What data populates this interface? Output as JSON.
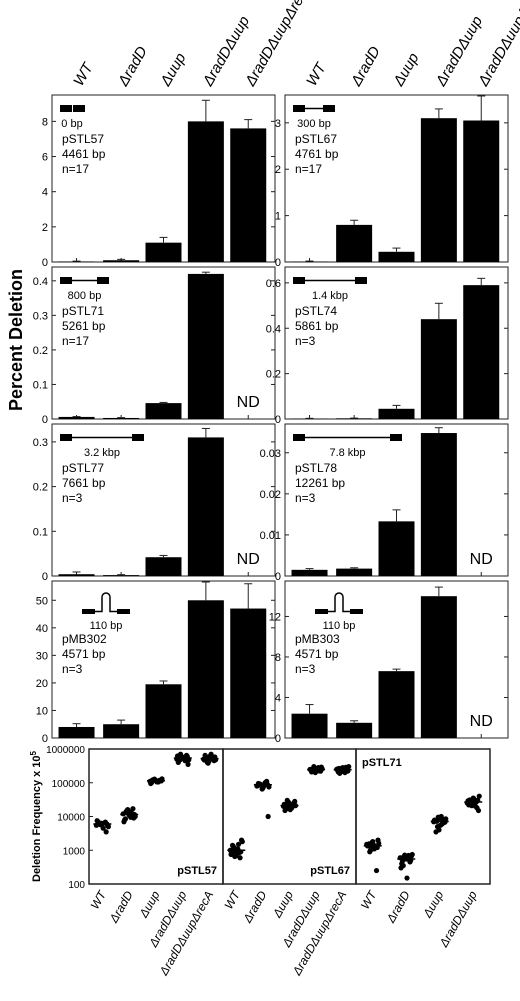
{
  "figure": {
    "y_axis_label_top": "Percent Deletion",
    "top_categories": [
      "WT",
      "ΔradD",
      "Δuup",
      "ΔradDΔuup",
      "ΔradDΔuupΔrecA"
    ]
  },
  "chart_data": [
    {
      "type": "bar",
      "plasmid": "pSTL57",
      "info": [
        "pSTL57",
        "4461 bp",
        "n=17"
      ],
      "insert": "0 bp",
      "schematic": "gap",
      "ylim": [
        0,
        9.5
      ],
      "ticks": [
        0,
        2,
        4,
        6,
        8
      ],
      "values": [
        0.03,
        0.1,
        1.1,
        8.0,
        7.6
      ],
      "errors": [
        0.02,
        0.05,
        0.3,
        1.2,
        0.5
      ],
      "nd": false
    },
    {
      "type": "bar",
      "plasmid": "pSTL67",
      "info": [
        "pSTL67",
        "4761 bp",
        "n=17"
      ],
      "insert": "300 bp",
      "schematic": "line",
      "ylim": [
        0,
        3.6
      ],
      "ticks": [
        0,
        1,
        2,
        3
      ],
      "values": [
        0.01,
        0.8,
        0.22,
        3.1,
        3.05
      ],
      "errors": [
        0.01,
        0.1,
        0.08,
        0.2,
        0.7
      ],
      "nd": false
    },
    {
      "type": "bar",
      "plasmid": "pSTL71",
      "info": [
        "pSTL71",
        "5261 bp",
        "n=17"
      ],
      "insert": "800 bp",
      "schematic": "line",
      "ylim": [
        0,
        0.44
      ],
      "ticks": [
        0,
        0.1,
        0.2,
        0.3,
        0.4
      ],
      "values": [
        0.006,
        0.003,
        0.046,
        0.42,
        null
      ],
      "errors": [
        0.001,
        0.001,
        0.002,
        0.005,
        null
      ],
      "nd": true
    },
    {
      "type": "bar",
      "plasmid": "pSTL74",
      "info": [
        "pSTL74",
        "5861 bp",
        "n=3"
      ],
      "insert": "1.4 kbp",
      "schematic": "line",
      "ylim": [
        0,
        0.67
      ],
      "ticks": [
        0,
        0.2,
        0.4,
        0.6
      ],
      "values": [
        0.002,
        0.003,
        0.045,
        0.44,
        0.59
      ],
      "errors": [
        0.001,
        0.001,
        0.015,
        0.07,
        0.03
      ],
      "nd": false
    },
    {
      "type": "bar",
      "plasmid": "pSTL77",
      "info": [
        "pSTL77",
        "7661 bp",
        "n=3"
      ],
      "insert": "3.2 kbp",
      "schematic": "line",
      "ylim": [
        0,
        0.34
      ],
      "ticks": [
        0,
        0.1,
        0.2,
        0.3
      ],
      "values": [
        0.004,
        0.002,
        0.042,
        0.31,
        null
      ],
      "errors": [
        0.005,
        0.001,
        0.004,
        0.02,
        null
      ],
      "nd": true
    },
    {
      "type": "bar",
      "plasmid": "pSTL78",
      "info": [
        "pSTL78",
        "12261 bp",
        "n=3"
      ],
      "insert": "7.8 kbp",
      "schematic": "line",
      "ylim": [
        0,
        0.037
      ],
      "ticks": [
        0,
        0.01,
        0.02,
        0.03
      ],
      "values": [
        0.0015,
        0.0018,
        0.0133,
        0.0348,
        null
      ],
      "errors": [
        0.0003,
        0.0002,
        0.0028,
        0.0013,
        null
      ],
      "nd": true
    },
    {
      "type": "bar",
      "plasmid": "pMB302",
      "info": [
        "pMB302",
        "4571 bp",
        "n=3"
      ],
      "insert": "110 bp",
      "schematic": "hairpin",
      "ylim": [
        0,
        57
      ],
      "ticks": [
        0,
        10,
        20,
        30,
        40,
        50
      ],
      "values": [
        4,
        5,
        19.5,
        50,
        47
      ],
      "errors": [
        1.2,
        1.5,
        1.2,
        8,
        9
      ],
      "nd": false
    },
    {
      "type": "bar",
      "plasmid": "pMB303",
      "info": [
        "pMB303",
        "4571 bp",
        "n=3"
      ],
      "insert": "110 bp",
      "schematic": "hairpin",
      "ylim": [
        0,
        15.5
      ],
      "ticks": [
        0,
        4,
        8,
        12
      ],
      "values": [
        2.4,
        1.5,
        6.6,
        14,
        null
      ],
      "errors": [
        0.9,
        0.2,
        0.2,
        0.9,
        null
      ],
      "nd": true
    },
    {
      "type": "scatter",
      "ylabel": "Deletion Frequency x 10",
      "ylabel_superscript": "5",
      "yscale": "log",
      "ylim": [
        100,
        1000000
      ],
      "ytick_labels": [
        "100",
        "1000",
        "10000",
        "100000",
        "1000000"
      ],
      "panels": [
        {
          "plasmid": "pSTL57",
          "label_position": "bottom-right",
          "categories": [
            "WT",
            "ΔradD",
            "Δuup",
            "ΔradDΔuup",
            "ΔradDΔuupΔrecA"
          ],
          "points": [
            [
              5500,
              6000,
              6500,
              6200,
              5800,
              7000,
              5000,
              3500,
              6400,
              5600,
              6100,
              7500,
              5300,
              6800,
              4500,
              6300,
              5900
            ],
            [
              12000,
              9000,
              13000,
              11000,
              15000,
              8000,
              10000,
              17000,
              9500,
              12500,
              14000,
              7000,
              11500,
              10500,
              13500,
              16000,
              8500
            ],
            [
              110000,
              120000,
              105000,
              115000,
              125000,
              100000,
              130000,
              112000,
              108000,
              118000,
              122000,
              95000,
              113000,
              117000,
              106000,
              128000,
              119000
            ],
            [
              500000,
              600000,
              450000,
              550000,
              700000,
              400000,
              480000,
              650000,
              520000,
              580000,
              470000,
              620000,
              350000,
              530000,
              560000,
              610000,
              490000
            ],
            [
              500000,
              450000,
              550000,
              600000,
              400000,
              650000,
              480000,
              520000,
              700000,
              430000,
              560000,
              470000,
              580000,
              510000,
              620000,
              380000,
              540000
            ]
          ],
          "medians": [
            6000,
            11500,
            115000,
            540000,
            520000
          ]
        },
        {
          "plasmid": "pSTL67",
          "label_position": "bottom-right",
          "categories": [
            "WT",
            "ΔradD",
            "Δuup",
            "ΔradDΔuup",
            "ΔradDΔuupΔrecA"
          ],
          "points": [
            [
              1000,
              900,
              1500,
              700,
              1200,
              800,
              1800,
              600,
              1100,
              950,
              1300,
              750,
              2000,
              850,
              1050,
              650,
              1400
            ],
            [
              80000,
              90000,
              100000,
              70000,
              85000,
              95000,
              75000,
              110000,
              88000,
              65000,
              92000,
              82000,
              10000,
              98000,
              78000,
              87000,
              93000
            ],
            [
              20000,
              25000,
              18000,
              22000,
              30000,
              15000,
              21000,
              24000,
              19000,
              26000,
              17000,
              23000,
              28000,
              20500,
              16000,
              22500,
              19500
            ],
            [
              250000,
              220000,
              280000,
              230000,
              300000,
              210000,
              260000,
              240000,
              270000,
              200000,
              255000,
              235000,
              290000,
              225000,
              265000,
              245000,
              215000
            ],
            [
              250000,
              220000,
              200000,
              280000,
              260000,
              210000,
              300000,
              230000,
              240000,
              270000,
              190000,
              255000,
              225000,
              285000,
              245000,
              215000,
              265000
            ]
          ],
          "medians": [
            1000,
            87000,
            21000,
            245000,
            245000
          ]
        },
        {
          "plasmid": "pSTL71",
          "label_position": "top-left",
          "categories": [
            "WT",
            "ΔradD",
            "Δuup",
            "ΔradDΔuup"
          ],
          "points": [
            [
              1500,
              1200,
              1300,
              1800,
              1000,
              1400,
              1600,
              250,
              1100,
              1700,
              900,
              1350,
              2000,
              1250,
              1450,
              1150,
              1550
            ],
            [
              600,
              500,
              700,
              550,
              650,
              400,
              750,
              450,
              580,
              620,
              350,
              300,
              680,
              520,
              150,
              720,
              480
            ],
            [
              7000,
              8000,
              6000,
              9000,
              5000,
              7500,
              8500,
              6500,
              10000,
              4000,
              7200,
              7800,
              6800,
              8200,
              5500,
              9500,
              3500
            ],
            [
              25000,
              30000,
              20000,
              35000,
              28000,
              22000,
              40000,
              18000,
              26000,
              32000,
              24000,
              29000,
              15000,
              27000,
              33000,
              21000,
              31000
            ]
          ],
          "medians": [
            1350,
            550,
            7200,
            27000
          ]
        }
      ]
    }
  ]
}
